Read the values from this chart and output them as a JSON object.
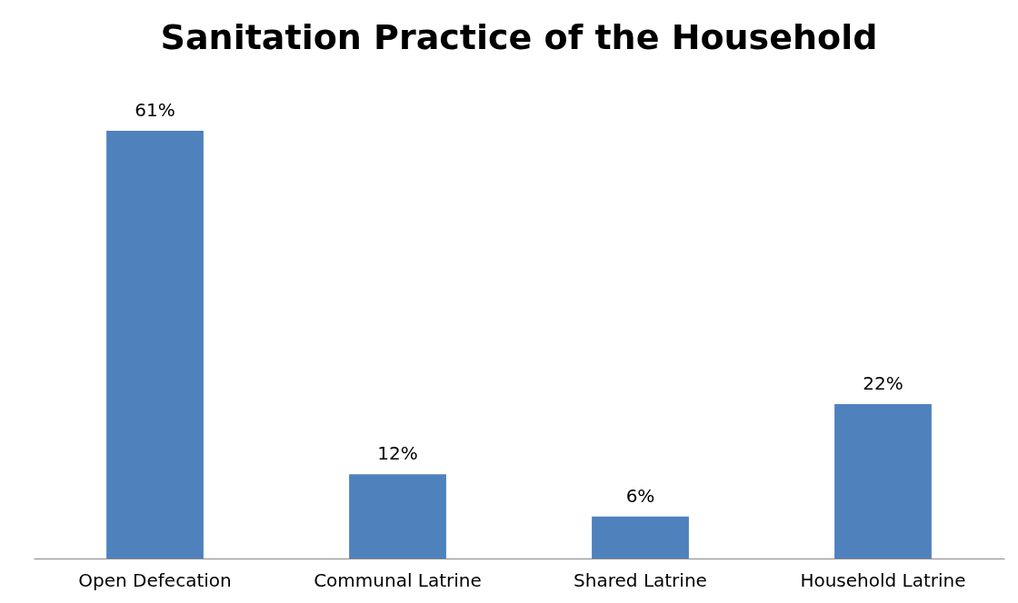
{
  "chart_data": {
    "type": "bar",
    "title": "Sanitation Practice of the Household",
    "categories": [
      "Open Defecation",
      "Communal Latrine",
      "Shared Latrine",
      "Household Latrine"
    ],
    "values": [
      61,
      12,
      6,
      22
    ],
    "value_labels": [
      "61%",
      "12%",
      "6%",
      "22%"
    ],
    "color": "#4f81bd",
    "grid": false
  }
}
